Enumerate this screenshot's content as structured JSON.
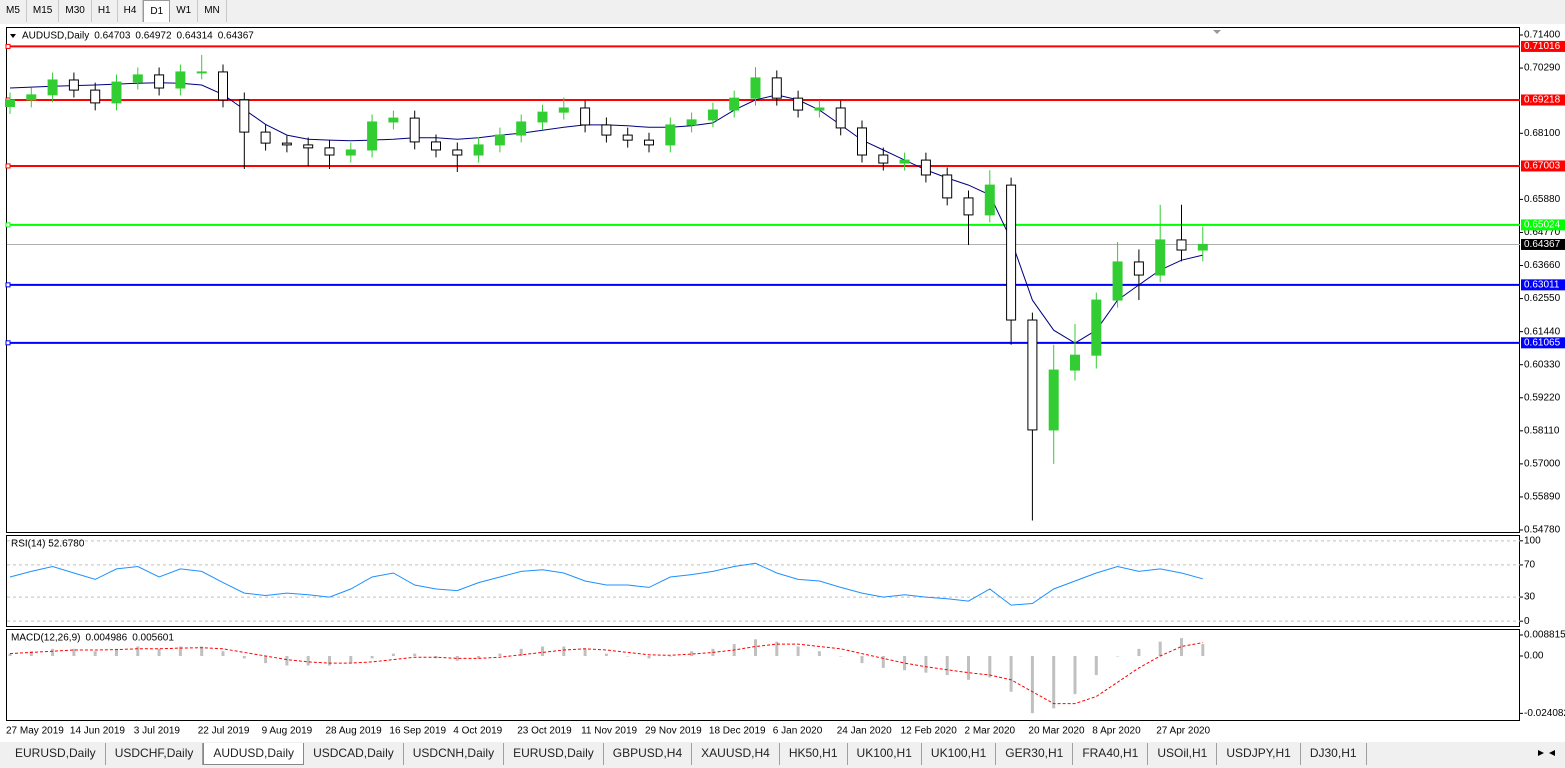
{
  "toolbar": [
    "M5",
    "M15",
    "M30",
    "H1",
    "H4",
    "D1",
    "W1",
    "MN"
  ],
  "toolbar_active": 5,
  "tabs": [
    "EURUSD,Daily",
    "USDCHF,Daily",
    "AUDUSD,Daily",
    "USDCAD,Daily",
    "USDCNH,Daily",
    "EURUSD,Daily",
    "GBPUSD,H4",
    "XAUUSD,H4",
    "HK50,H1",
    "UK100,H1",
    "UK100,H1",
    "GER30,H1",
    "FRA40,H1",
    "USOil,H1",
    "USDJPY,H1",
    "DJ30,H1"
  ],
  "tabs_active": 2,
  "chart_data": [
    {
      "type": "candlestick",
      "title": "AUDUSD,Daily",
      "header_values": [
        0.64703,
        0.64972,
        0.64314,
        0.64367
      ],
      "categories": [
        "27 May 2019",
        null,
        null,
        "14 Jun 2019",
        null,
        null,
        "3 Jul 2019",
        null,
        null,
        "22 Jul 2019",
        null,
        null,
        "9 Aug 2019",
        null,
        null,
        "28 Aug 2019",
        null,
        null,
        "16 Sep 2019",
        null,
        null,
        "4 Oct 2019",
        null,
        null,
        "23 Oct 2019",
        null,
        null,
        "11 Nov 2019",
        null,
        null,
        "29 Nov 2019",
        null,
        null,
        "18 Dec 2019",
        null,
        null,
        "6 Jan 2020",
        null,
        null,
        "24 Jan 2020",
        null,
        null,
        "12 Feb 2020",
        null,
        null,
        "2 Mar 2020",
        null,
        null,
        "20 Mar 2020",
        null,
        null,
        "8 Apr 2020",
        null,
        null,
        "27 Apr 2020",
        null,
        null
      ],
      "open": [
        0.69,
        0.6922,
        0.6939,
        0.6989,
        0.6955,
        0.6912,
        0.6982,
        0.7006,
        0.6962,
        0.7016,
        0.7016,
        0.6922,
        0.6814,
        0.6777,
        0.6771,
        0.6761,
        0.6737,
        0.6754,
        0.6848,
        0.6861,
        0.6781,
        0.6754,
        0.6737,
        0.6771,
        0.6804,
        0.6848,
        0.6881,
        0.6895,
        0.6838,
        0.6804,
        0.6787,
        0.6771,
        0.6838,
        0.6855,
        0.6888,
        0.6928,
        0.6996,
        0.6928,
        0.6888,
        0.6895,
        0.6828,
        0.6737,
        0.671,
        0.672,
        0.667,
        0.6593,
        0.6536,
        0.6636,
        0.6183,
        0.5814,
        0.6015,
        0.6065,
        0.625,
        0.6378,
        0.6334,
        0.6452,
        0.6418
      ],
      "high": [
        0.6947,
        0.6964,
        0.7014,
        0.7014,
        0.698,
        0.7007,
        0.7031,
        0.7031,
        0.7041,
        0.7073,
        0.7041,
        0.6947,
        0.6839,
        0.6802,
        0.6796,
        0.6786,
        0.6779,
        0.6873,
        0.6886,
        0.6886,
        0.6806,
        0.6779,
        0.6796,
        0.6829,
        0.6873,
        0.6906,
        0.693,
        0.692,
        0.6863,
        0.6829,
        0.6812,
        0.6863,
        0.688,
        0.6913,
        0.6953,
        0.7032,
        0.7021,
        0.6953,
        0.692,
        0.692,
        0.6853,
        0.6762,
        0.6745,
        0.6745,
        0.6695,
        0.6618,
        0.6686,
        0.6661,
        0.6208,
        0.61,
        0.617,
        0.6275,
        0.6445,
        0.642,
        0.657,
        0.657,
        0.6497
      ],
      "low": [
        0.6875,
        0.6897,
        0.6914,
        0.693,
        0.6887,
        0.6887,
        0.6957,
        0.6937,
        0.6937,
        0.6991,
        0.6897,
        0.669,
        0.6752,
        0.6746,
        0.67,
        0.669,
        0.6712,
        0.6729,
        0.6823,
        0.6756,
        0.6729,
        0.668,
        0.6712,
        0.6746,
        0.6779,
        0.6823,
        0.6856,
        0.6813,
        0.6779,
        0.6762,
        0.6746,
        0.6746,
        0.6813,
        0.683,
        0.6863,
        0.6903,
        0.6903,
        0.6863,
        0.6863,
        0.6803,
        0.6712,
        0.6685,
        0.6685,
        0.6645,
        0.6568,
        0.6435,
        0.6511,
        0.61,
        0.551,
        0.57,
        0.598,
        0.602,
        0.6225,
        0.625,
        0.631,
        0.638,
        0.638
      ],
      "close": [
        0.6922,
        0.6939,
        0.6989,
        0.6955,
        0.6912,
        0.6982,
        0.7006,
        0.6962,
        0.7016,
        0.7016,
        0.6922,
        0.6814,
        0.6777,
        0.6771,
        0.6761,
        0.6737,
        0.6754,
        0.6848,
        0.6861,
        0.6781,
        0.6754,
        0.6737,
        0.6771,
        0.6804,
        0.6848,
        0.6881,
        0.6895,
        0.6838,
        0.6804,
        0.6787,
        0.6771,
        0.6838,
        0.6855,
        0.6888,
        0.6928,
        0.6996,
        0.6928,
        0.6888,
        0.6895,
        0.6828,
        0.6737,
        0.671,
        0.672,
        0.667,
        0.6593,
        0.6536,
        0.6636,
        0.6183,
        0.5814,
        0.6015,
        0.6065,
        0.625,
        0.6378,
        0.6334,
        0.6452,
        0.6418,
        0.64367
      ],
      "up_color": "#32cd32",
      "down_color": "#ffffff",
      "series": [
        {
          "color": "#000080",
          "values": [
            0.6962,
            0.6965,
            0.6968,
            0.697,
            0.6972,
            0.6975,
            0.6978,
            0.698,
            0.6978,
            0.6972,
            0.694,
            0.689,
            0.684,
            0.6804,
            0.679,
            0.6787,
            0.6785,
            0.6787,
            0.679,
            0.6795,
            0.6795,
            0.679,
            0.6795,
            0.6804,
            0.681,
            0.682,
            0.683,
            0.6838,
            0.6838,
            0.6835,
            0.683,
            0.683,
            0.6835,
            0.6845,
            0.6888,
            0.6922,
            0.6939,
            0.6922,
            0.6888,
            0.6838,
            0.6787,
            0.6754,
            0.672,
            0.6687,
            0.666,
            0.6636,
            0.6603,
            0.6452,
            0.625,
            0.6149,
            0.6106,
            0.6149,
            0.625,
            0.6301,
            0.6351,
            0.6384,
            0.6401
          ]
        }
      ],
      "levels": [
        {
          "value": 0.71016,
          "color": "#ff0000"
        },
        {
          "value": 0.69218,
          "color": "#ff0000"
        },
        {
          "value": 0.67003,
          "color": "#ff0000"
        },
        {
          "value": 0.65024,
          "color": "#00ff00"
        },
        {
          "value": 0.63011,
          "color": "#0000ff"
        },
        {
          "value": 0.61065,
          "color": "#0000ff"
        }
      ],
      "ylim": [
        0.54713,
        0.71635
      ],
      "yticks": [
        {
          "value": 0.714,
          "label": "0.71400"
        },
        {
          "value": 0.7029,
          "label": "0.70290"
        },
        {
          "value": 0.681,
          "label": "0.68100"
        },
        {
          "value": 0.6588,
          "label": "0.65880"
        },
        {
          "value": 0.6477,
          "label": "0.64770"
        },
        {
          "value": 0.6366,
          "label": "0.63660"
        },
        {
          "value": 0.6255,
          "label": "0.62550"
        },
        {
          "value": 0.6144,
          "label": "0.61440"
        },
        {
          "value": 0.6033,
          "label": "0.60330"
        },
        {
          "value": 0.5922,
          "label": "0.59220"
        },
        {
          "value": 0.5811,
          "label": "0.58110"
        },
        {
          "value": 0.57,
          "label": "0.57000"
        },
        {
          "value": 0.5589,
          "label": "0.55890"
        },
        {
          "value": 0.5478,
          "label": "0.54780"
        }
      ]
    },
    {
      "type": "line",
      "title": "RSI(14) 52.6780",
      "color": "#1e90ff",
      "values": [
        55,
        62,
        68,
        60,
        52,
        65,
        68,
        55,
        65,
        62,
        48,
        35,
        32,
        35,
        33,
        30,
        40,
        55,
        60,
        45,
        40,
        38,
        48,
        55,
        62,
        64,
        60,
        50,
        45,
        45,
        42,
        55,
        58,
        62,
        68,
        72,
        60,
        52,
        50,
        42,
        35,
        30,
        33,
        30,
        28,
        25,
        40,
        20,
        22,
        40,
        50,
        60,
        68,
        62,
        65,
        60,
        52.678
      ],
      "ylim": [
        -6,
        106
      ],
      "yticks": [
        100,
        70,
        30,
        0
      ]
    },
    {
      "type": "macd",
      "title": "MACD(12,26,9)",
      "color": "#c0c0c0",
      "signal_color": "#ff0000",
      "values": [
        0.001,
        0.002,
        0.003,
        0.003,
        0.002,
        0.003,
        0.004,
        0.003,
        0.004,
        0.004,
        0.002,
        -0.001,
        -0.003,
        -0.004,
        -0.004,
        -0.004,
        -0.003,
        -0.001,
        0.001,
        0.001,
        -0.001,
        -0.002,
        -0.001,
        0.001,
        0.003,
        0.004,
        0.004,
        0.003,
        0.001,
        0,
        -0.001,
        0,
        0.002,
        0.003,
        0.005,
        0.007,
        0.006,
        0.004,
        0.002,
        0,
        -0.003,
        -0.005,
        -0.006,
        -0.007,
        -0.008,
        -0.01,
        -0.009,
        -0.015,
        -0.024,
        -0.022,
        -0.016,
        -0.008,
        0,
        0.003,
        0.006,
        0.0075,
        0.004986
      ],
      "signal": [
        0.001,
        0.0015,
        0.002,
        0.0025,
        0.0025,
        0.0027,
        0.003,
        0.003,
        0.0033,
        0.0035,
        0.003,
        0.0015,
        0,
        -0.0015,
        -0.0025,
        -0.003,
        -0.003,
        -0.0025,
        -0.0015,
        -0.0005,
        -0.0005,
        -0.001,
        -0.001,
        -0.0005,
        0.0005,
        0.0015,
        0.0025,
        0.003,
        0.0025,
        0.0015,
        0.0005,
        0.0003,
        0.0008,
        0.0015,
        0.0025,
        0.004,
        0.005,
        0.005,
        0.004,
        0.003,
        0.001,
        -0.001,
        -0.003,
        -0.0045,
        -0.0058,
        -0.007,
        -0.008,
        -0.01,
        -0.015,
        -0.02,
        -0.02,
        -0.017,
        -0.011,
        -0.005,
        0,
        0.004,
        0.005601
      ],
      "ylim": [
        -0.02687,
        0.01091
      ],
      "yticks": [
        0.008815,
        {
          "value": 0,
          "label": "0.00"
        },
        -0.024082
      ]
    }
  ]
}
